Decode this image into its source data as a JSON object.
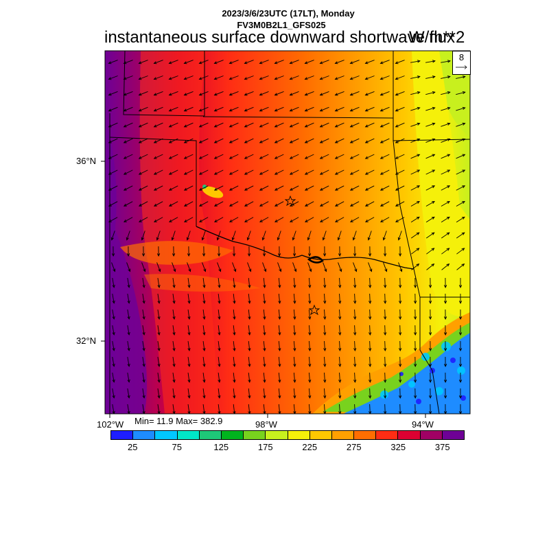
{
  "header": {
    "line1": "2023/3/6/23UTC (17LT), Monday",
    "line2": "FV3M0B2L1_GFS025",
    "title": "instantaneous surface downward shortwave flux",
    "units": "W/m**2"
  },
  "reference_vector": {
    "label": "8"
  },
  "lat_labels": [
    "36°N",
    "32°N"
  ],
  "lon_labels": [
    "102°W",
    "98°W",
    "94°W"
  ],
  "stats": {
    "text": "Min= 11.9 Max= 382.9",
    "min": 11.9,
    "max": 382.9
  },
  "colorbar": {
    "colors": [
      "#1e1eff",
      "#1e8cff",
      "#00c8ff",
      "#00e6c8",
      "#1ec878",
      "#00b41e",
      "#78d21e",
      "#c8f01e",
      "#f5f00a",
      "#ffc800",
      "#ffa000",
      "#ff6e00",
      "#ff2d14",
      "#dc0032",
      "#a00064",
      "#6e0096"
    ],
    "labels": [
      "25",
      "75",
      "125",
      "175",
      "225",
      "275",
      "325",
      "375"
    ]
  },
  "markers": [
    {
      "name": "star-oklahoma-city",
      "type": "star"
    },
    {
      "name": "star-dallas",
      "type": "star"
    }
  ],
  "map": {
    "domain": "Southern Plains (OK/TX)",
    "field": "surface downward shortwave flux",
    "vectors": "wind"
  }
}
